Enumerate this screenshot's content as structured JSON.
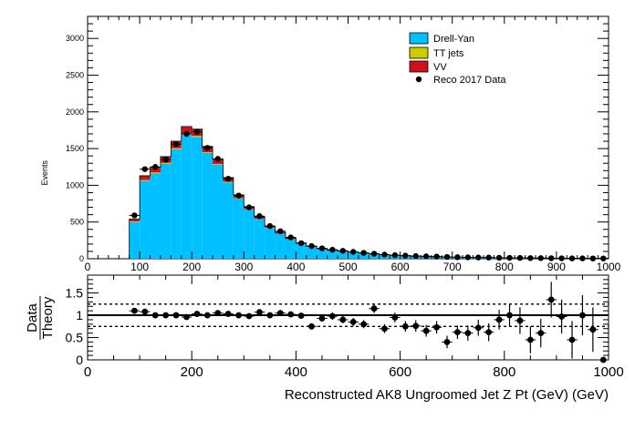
{
  "colors": {
    "drell_yan": "#00c0ff",
    "tt_jets": "#cccc00",
    "vv": "#d0101a",
    "data": "#000000"
  },
  "chart_data": [
    {
      "type": "bar",
      "subtype": "stacked-histogram",
      "ylabel": "Events",
      "xlim": [
        0,
        1000
      ],
      "ylim": [
        0,
        3300
      ],
      "x_ticks": [
        "0",
        "100",
        "200",
        "300",
        "400",
        "500",
        "600",
        "700",
        "800",
        "900",
        "1000"
      ],
      "y_ticks": [
        "0",
        "500",
        "1000",
        "1500",
        "2000",
        "2500",
        "3000"
      ],
      "grid": false,
      "legend": "top-right",
      "legend_entries": [
        "Drell-Yan",
        "TT jets",
        "VV",
        "Reco 2017 Data"
      ],
      "bin_edges": [
        80,
        100,
        120,
        140,
        160,
        180,
        200,
        220,
        240,
        260,
        280,
        300,
        320,
        340,
        360,
        380,
        400,
        420,
        440,
        460,
        480,
        500,
        520,
        540,
        560,
        580,
        600,
        620,
        640,
        660,
        680,
        700,
        720,
        740,
        760,
        780,
        800,
        820,
        840,
        860,
        880,
        900,
        920,
        940,
        960,
        980,
        1000
      ],
      "series": [
        {
          "name": "Drell-Yan",
          "style": "stacked-fill",
          "values": [
            500,
            1060,
            1160,
            1290,
            1490,
            1690,
            1660,
            1440,
            1280,
            1040,
            820,
            670,
            540,
            420,
            340,
            265,
            205,
            160,
            130,
            112,
            98,
            85,
            72,
            62,
            52,
            45,
            40,
            34,
            30,
            27,
            23,
            21,
            19,
            17,
            15,
            13,
            12,
            11,
            10,
            9,
            8,
            7,
            6,
            6,
            5,
            5
          ]
        },
        {
          "name": "TT jets",
          "style": "stacked-fill",
          "values": [
            8,
            12,
            15,
            15,
            15,
            14,
            13,
            11,
            9,
            7,
            6,
            4,
            3,
            3,
            2,
            2,
            1,
            1,
            1,
            1,
            1,
            1,
            1,
            0,
            0,
            0,
            0,
            0,
            0,
            0,
            0,
            0,
            0,
            0,
            0,
            0,
            0,
            0,
            0,
            0,
            0,
            0,
            0,
            0,
            0,
            0
          ]
        },
        {
          "name": "VV",
          "style": "stacked-fill",
          "values": [
            32,
            58,
            75,
            85,
            95,
            96,
            91,
            79,
            71,
            58,
            44,
            36,
            27,
            22,
            18,
            13,
            9,
            7,
            6,
            4,
            4,
            4,
            3,
            3,
            3,
            2,
            2,
            2,
            1,
            1,
            1,
            1,
            1,
            1,
            1,
            1,
            1,
            1,
            1,
            1,
            1,
            1,
            1,
            1,
            1,
            1
          ]
        },
        {
          "name": "Reco 2017 Data",
          "style": "points",
          "values": [
            590,
            1220,
            1250,
            1350,
            1560,
            1700,
            1730,
            1510,
            1360,
            1090,
            860,
            700,
            580,
            445,
            375,
            290,
            212,
            172,
            142,
            123,
            108,
            93,
            80,
            68,
            56,
            48,
            42,
            36,
            33,
            29,
            24,
            21,
            19,
            17,
            16,
            13,
            12,
            11,
            9,
            8,
            7,
            6,
            5,
            5,
            4,
            4
          ]
        }
      ]
    },
    {
      "type": "scatter",
      "subtype": "ratio",
      "ylabel_numerator": "Data",
      "ylabel_denominator": "Theory",
      "xlabel": "Reconstructed AK8 Ungroomed Jet Z Pt (GeV) (GeV)",
      "xlim": [
        0,
        1000
      ],
      "ylim": [
        0,
        1.9
      ],
      "x_ticks": [
        "0",
        "200",
        "400",
        "600",
        "800",
        "1000"
      ],
      "y_ticks": [
        "0",
        "0.5",
        "1",
        "1.5"
      ],
      "reference_lines": [
        {
          "y": 1,
          "style": "solid"
        },
        {
          "y": 0.75,
          "style": "dashed"
        },
        {
          "y": 1.25,
          "style": "dashed"
        }
      ],
      "x": [
        90,
        110,
        130,
        150,
        170,
        190,
        210,
        230,
        250,
        270,
        290,
        310,
        330,
        350,
        370,
        390,
        410,
        430,
        450,
        470,
        490,
        510,
        530,
        550,
        570,
        590,
        610,
        630,
        650,
        670,
        690,
        710,
        730,
        750,
        770,
        790,
        810,
        830,
        850,
        870,
        890,
        910,
        930,
        950,
        970,
        990
      ],
      "y": [
        1.1,
        1.08,
        1.0,
        1.0,
        1.0,
        0.96,
        1.03,
        1.0,
        1.05,
        1.03,
        1.0,
        0.98,
        1.07,
        1.0,
        1.05,
        1.02,
        0.99,
        0.75,
        0.93,
        0.98,
        0.9,
        0.85,
        0.8,
        1.15,
        0.7,
        0.95,
        0.75,
        0.76,
        0.65,
        0.73,
        0.4,
        0.62,
        0.6,
        0.72,
        0.62,
        0.9,
        1.0,
        0.88,
        0.45,
        0.6,
        1.35,
        0.97,
        0.45,
        1.0,
        0.68,
        0.0
      ],
      "yerr": [
        0.04,
        0.03,
        0.03,
        0.03,
        0.03,
        0.03,
        0.03,
        0.03,
        0.03,
        0.03,
        0.03,
        0.04,
        0.05,
        0.05,
        0.05,
        0.06,
        0.06,
        0.07,
        0.07,
        0.08,
        0.08,
        0.09,
        0.09,
        0.1,
        0.1,
        0.11,
        0.12,
        0.13,
        0.13,
        0.14,
        0.14,
        0.15,
        0.17,
        0.18,
        0.2,
        0.22,
        0.25,
        0.3,
        0.3,
        0.32,
        0.4,
        0.38,
        0.42,
        0.45,
        0.5,
        0.0
      ]
    }
  ]
}
